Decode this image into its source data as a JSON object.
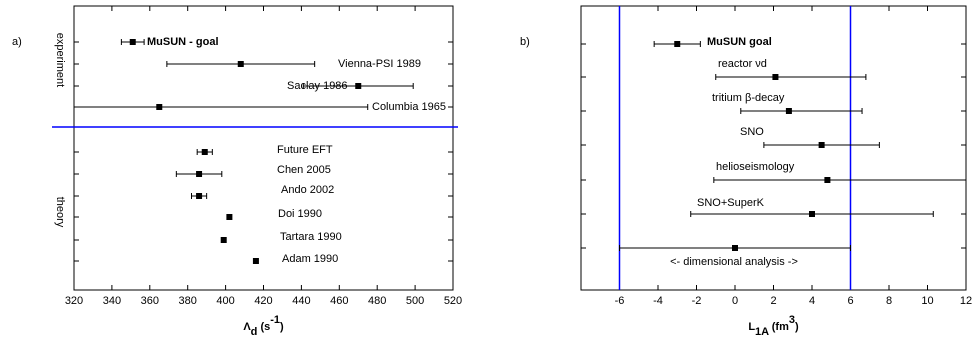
{
  "chart_data": [
    {
      "type": "errorbar",
      "panel": "a)",
      "xlabel": [
        {
          "text": "Λ"
        },
        {
          "text": "d",
          "shift": "sub"
        },
        {
          "text": " (s"
        },
        {
          "text": "-1",
          "shift": "sup"
        },
        {
          "text": ")"
        }
      ],
      "groups": [
        {
          "name": "experiment",
          "categories": [
            "MuSUN - goal",
            "Vienna-PSI 1989",
            "Saclay 1986",
            "Columbia 1965"
          ],
          "values": [
            351,
            408,
            470,
            365
          ],
          "errors": [
            6,
            39,
            29,
            110
          ],
          "highlight": {
            "index": 0,
            "color": "#ff0000"
          }
        },
        {
          "name": "theory",
          "categories": [
            "Future EFT",
            "Chen 2005",
            "Ando 2002",
            "Doi 1990",
            "Tartara 1990",
            "Adam 1990"
          ],
          "values": [
            389,
            386,
            386,
            402,
            399,
            416
          ],
          "errors": [
            4,
            12,
            4,
            null,
            null,
            null
          ]
        }
      ],
      "separator_color": "#0000ff",
      "color": "#000000",
      "xlim": [
        320,
        520
      ],
      "xticks": [
        320,
        340,
        360,
        380,
        400,
        420,
        440,
        460,
        480,
        500,
        520
      ]
    },
    {
      "type": "errorbar",
      "panel": "b)",
      "xlabel": [
        {
          "text": "L"
        },
        {
          "text": "1A",
          "shift": "sub"
        },
        {
          "text": " (fm"
        },
        {
          "text": "3",
          "shift": "sup"
        },
        {
          "text": ")"
        }
      ],
      "categories": [
        "MuSUN goal",
        "reactor νd",
        "tritium β-decay",
        "SNO",
        "helioseismology",
        "SNO+SuperK",
        "<-  dimensional analysis  ->"
      ],
      "values": [
        -3,
        2.1,
        2.8,
        4.5,
        4.8,
        4.0,
        0
      ],
      "errors": [
        [
          1.2,
          1.2
        ],
        [
          3.1,
          4.7
        ],
        [
          2.5,
          3.8
        ],
        [
          3.0,
          3.0
        ],
        [
          5.9,
          7.4
        ],
        [
          6.3,
          6.3
        ],
        [
          6,
          6
        ]
      ],
      "highlight": {
        "index": 0,
        "color": "#ff0000"
      },
      "reference_lines": [
        -6,
        6
      ],
      "reference_color": "#0000ff",
      "color": "#000000",
      "xlim": [
        -8,
        12
      ],
      "xticks": [
        -6,
        -4,
        -2,
        0,
        2,
        4,
        6,
        8,
        10,
        12
      ]
    }
  ]
}
